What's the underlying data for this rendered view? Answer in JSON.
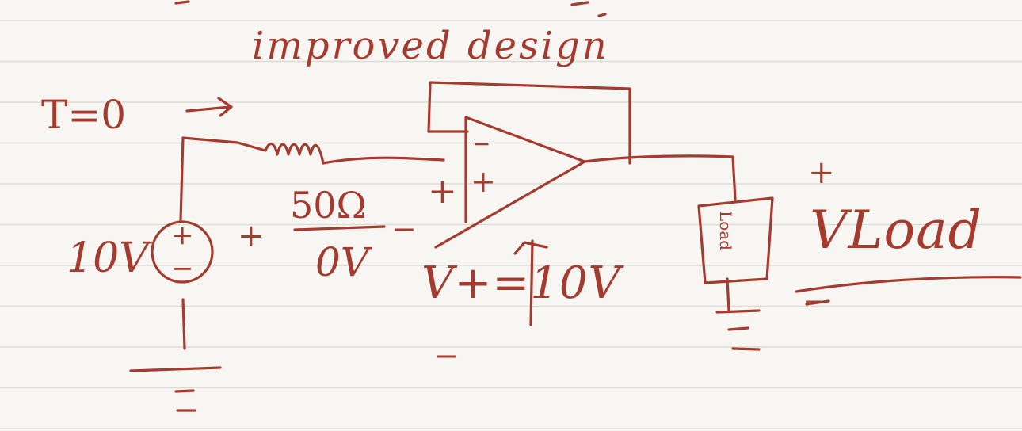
{
  "page": {
    "paper_color": "#f7f6f2",
    "rule_color": "#dedcd6",
    "ink_color": "#a53a2f"
  },
  "annotations": {
    "title": "improved design",
    "time": "T=0",
    "source_voltage": "10V",
    "source_plus": "+",
    "source_minus": "−",
    "resistor": "50Ω",
    "resistor_plus": "+",
    "resistor_minus": "−",
    "resistor_voltage": "0V",
    "opamp_minus": "−",
    "opamp_plus": "+",
    "input_plus": "+",
    "v_plus": "V+=10V",
    "v_plus_minus": "−",
    "load_label": "Load",
    "load_plus": "+",
    "load_voltage": "VLoad",
    "load_minus": "−"
  }
}
